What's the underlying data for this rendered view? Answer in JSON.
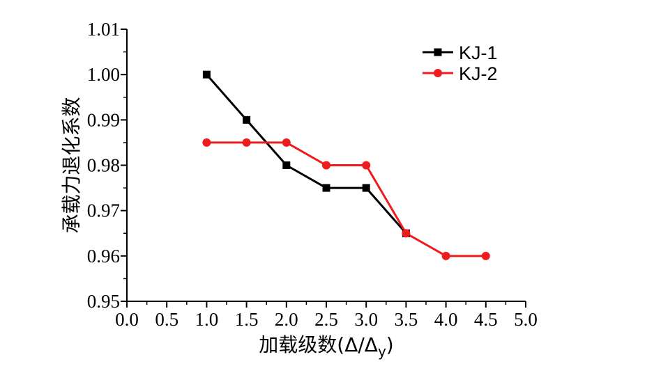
{
  "chart_data": {
    "type": "line",
    "xlabel": "加载级数(Δ/Δy)",
    "ylabel": "承载力退化系数",
    "xlim": [
      0.0,
      5.0
    ],
    "ylim": [
      0.95,
      1.01
    ],
    "x_ticks": [
      "0.0",
      "0.5",
      "1.0",
      "1.5",
      "2.0",
      "2.5",
      "3.0",
      "3.5",
      "4.0",
      "4.5",
      "5.0"
    ],
    "y_ticks": [
      "0.95",
      "0.96",
      "0.97",
      "0.98",
      "0.99",
      "1.00",
      "1.01"
    ],
    "legend_position": "top-right",
    "grid": false,
    "series": [
      {
        "name": "KJ-1",
        "color": "#000000",
        "marker": "square",
        "x": [
          1.0,
          1.5,
          2.0,
          2.5,
          3.0,
          3.5
        ],
        "y": [
          1.0,
          0.99,
          0.98,
          0.975,
          0.975,
          0.965
        ]
      },
      {
        "name": "KJ-2",
        "color": "#ee1c1c",
        "marker": "circle",
        "x": [
          1.0,
          1.5,
          2.0,
          2.5,
          3.0,
          3.5,
          4.0,
          4.5
        ],
        "y": [
          0.985,
          0.985,
          0.985,
          0.98,
          0.98,
          0.965,
          0.96,
          0.96
        ]
      }
    ]
  }
}
